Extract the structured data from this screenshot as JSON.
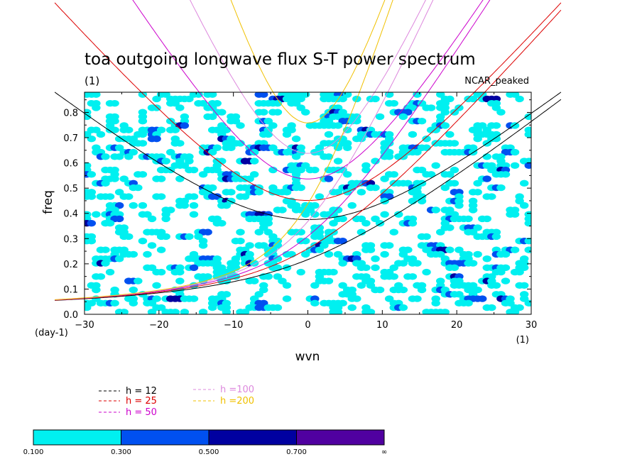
{
  "chart_data": {
    "type": "heatmap",
    "title": "toa outgoing longwave flux S-T power spectrum",
    "subtitle_left": "(1)",
    "subtitle_right": "NCAR_peaked",
    "xlabel": "wvn",
    "ylabel": "freq",
    "x_units": "(1)",
    "y_units": "(day-1)",
    "xlim": [
      -30,
      30
    ],
    "ylim": [
      0,
      0.88
    ],
    "x_ticks": [
      -30,
      -20,
      -10,
      0,
      10,
      20,
      30
    ],
    "x_tick_labels": [
      "−30",
      "−20",
      "−10",
      "0",
      "10",
      "20",
      "30"
    ],
    "y_ticks": [
      0,
      0.1,
      0.2,
      0.3,
      0.4,
      0.5,
      0.6,
      0.7,
      0.8
    ],
    "y_tick_labels": [
      "0.0",
      "0.1",
      "0.2",
      "0.3",
      "0.4",
      "0.5",
      "0.6",
      "0.7",
      "0.8"
    ],
    "contour_levels": [
      0.1,
      0.3,
      0.5,
      0.7
    ],
    "colorbar": {
      "colors": [
        "#00f0f0",
        "#0050f0",
        "#0000a0",
        "#5000a0"
      ],
      "labels": [
        "0.100",
        "0.300",
        "0.500",
        "0.700",
        "∞"
      ]
    },
    "dispersion_curves": [
      {
        "name": "h = 12",
        "color": "#000000"
      },
      {
        "name": "h = 25",
        "color": "#dd0000"
      },
      {
        "name": "h = 50",
        "color": "#cc00cc"
      },
      {
        "name": "h =100",
        "color": "#dd88dd"
      },
      {
        "name": "h =200",
        "color": "#f0c000"
      }
    ],
    "blob_seed": 20240611,
    "grid": false
  }
}
